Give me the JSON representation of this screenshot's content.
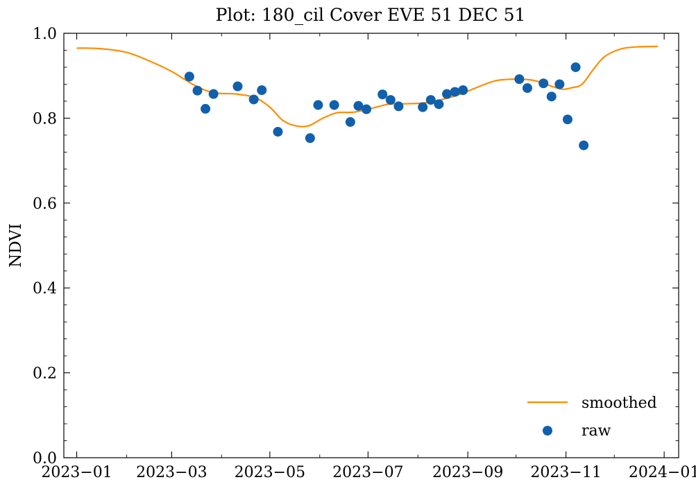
{
  "chart_data": {
    "type": "scatter",
    "title": "Plot: 180_cil Cover EVE 51 DEC 51",
    "xlabel": "",
    "ylabel": "NDVI",
    "xlim": [
      "2022-12-24",
      "2024-01-10"
    ],
    "ylim": [
      0.0,
      1.0
    ],
    "x_ticks": [
      "2023-01-01",
      "2023-03-01",
      "2023-05-01",
      "2023-07-01",
      "2023-09-01",
      "2023-11-01",
      "2024-01-01"
    ],
    "x_tick_labels": [
      "2023−01",
      "2023−03",
      "2023−05",
      "2023−07",
      "2023−09",
      "2023−11",
      "2024−01"
    ],
    "y_ticks": [
      0.0,
      0.2,
      0.4,
      0.6,
      0.8,
      1.0
    ],
    "y_tick_labels": [
      "0.0",
      "0.2",
      "0.4",
      "0.6",
      "0.8",
      "1.0"
    ],
    "grid": false,
    "legend_position": "bottom-right",
    "series": [
      {
        "name": "smoothed",
        "kind": "line",
        "color": "#ff8c00",
        "points": [
          {
            "x": "2023-01-01",
            "y": 0.965
          },
          {
            "x": "2023-01-15",
            "y": 0.964
          },
          {
            "x": "2023-02-01",
            "y": 0.955
          },
          {
            "x": "2023-02-15",
            "y": 0.935
          },
          {
            "x": "2023-03-01",
            "y": 0.91
          },
          {
            "x": "2023-03-15",
            "y": 0.878
          },
          {
            "x": "2023-03-27",
            "y": 0.86
          },
          {
            "x": "2023-04-10",
            "y": 0.857
          },
          {
            "x": "2023-04-22",
            "y": 0.848
          },
          {
            "x": "2023-05-01",
            "y": 0.826
          },
          {
            "x": "2023-05-09",
            "y": 0.795
          },
          {
            "x": "2023-05-17",
            "y": 0.782
          },
          {
            "x": "2023-05-25",
            "y": 0.782
          },
          {
            "x": "2023-06-03",
            "y": 0.8
          },
          {
            "x": "2023-06-12",
            "y": 0.813
          },
          {
            "x": "2023-06-22",
            "y": 0.814
          },
          {
            "x": "2023-07-03",
            "y": 0.823
          },
          {
            "x": "2023-07-14",
            "y": 0.833
          },
          {
            "x": "2023-07-25",
            "y": 0.834
          },
          {
            "x": "2023-08-05",
            "y": 0.836
          },
          {
            "x": "2023-08-16",
            "y": 0.844
          },
          {
            "x": "2023-08-27",
            "y": 0.856
          },
          {
            "x": "2023-09-07",
            "y": 0.873
          },
          {
            "x": "2023-09-18",
            "y": 0.888
          },
          {
            "x": "2023-09-30",
            "y": 0.892
          },
          {
            "x": "2023-10-12",
            "y": 0.889
          },
          {
            "x": "2023-10-24",
            "y": 0.874
          },
          {
            "x": "2023-10-30",
            "y": 0.868
          },
          {
            "x": "2023-11-05",
            "y": 0.872
          },
          {
            "x": "2023-11-11",
            "y": 0.88
          },
          {
            "x": "2023-11-18",
            "y": 0.915
          },
          {
            "x": "2023-11-25",
            "y": 0.945
          },
          {
            "x": "2023-12-05",
            "y": 0.963
          },
          {
            "x": "2023-12-15",
            "y": 0.968
          },
          {
            "x": "2023-12-28",
            "y": 0.969
          }
        ]
      },
      {
        "name": "raw",
        "kind": "scatter",
        "color": "#1160ac",
        "points": [
          {
            "x": "2023-03-12",
            "y": 0.898
          },
          {
            "x": "2023-03-17",
            "y": 0.865
          },
          {
            "x": "2023-03-22",
            "y": 0.822
          },
          {
            "x": "2023-03-27",
            "y": 0.857
          },
          {
            "x": "2023-04-11",
            "y": 0.875
          },
          {
            "x": "2023-04-21",
            "y": 0.844
          },
          {
            "x": "2023-04-26",
            "y": 0.866
          },
          {
            "x": "2023-05-06",
            "y": 0.768
          },
          {
            "x": "2023-05-26",
            "y": 0.753
          },
          {
            "x": "2023-05-31",
            "y": 0.831
          },
          {
            "x": "2023-06-10",
            "y": 0.831
          },
          {
            "x": "2023-06-20",
            "y": 0.791
          },
          {
            "x": "2023-06-25",
            "y": 0.829
          },
          {
            "x": "2023-06-30",
            "y": 0.821
          },
          {
            "x": "2023-07-10",
            "y": 0.856
          },
          {
            "x": "2023-07-15",
            "y": 0.843
          },
          {
            "x": "2023-07-20",
            "y": 0.828
          },
          {
            "x": "2023-08-04",
            "y": 0.826
          },
          {
            "x": "2023-08-09",
            "y": 0.843
          },
          {
            "x": "2023-08-14",
            "y": 0.833
          },
          {
            "x": "2023-08-19",
            "y": 0.857
          },
          {
            "x": "2023-08-24",
            "y": 0.862
          },
          {
            "x": "2023-08-29",
            "y": 0.866
          },
          {
            "x": "2023-10-03",
            "y": 0.892
          },
          {
            "x": "2023-10-08",
            "y": 0.871
          },
          {
            "x": "2023-10-18",
            "y": 0.882
          },
          {
            "x": "2023-10-23",
            "y": 0.851
          },
          {
            "x": "2023-10-28",
            "y": 0.88
          },
          {
            "x": "2023-11-02",
            "y": 0.797
          },
          {
            "x": "2023-11-07",
            "y": 0.92
          },
          {
            "x": "2023-11-12",
            "y": 0.736
          }
        ]
      }
    ]
  }
}
